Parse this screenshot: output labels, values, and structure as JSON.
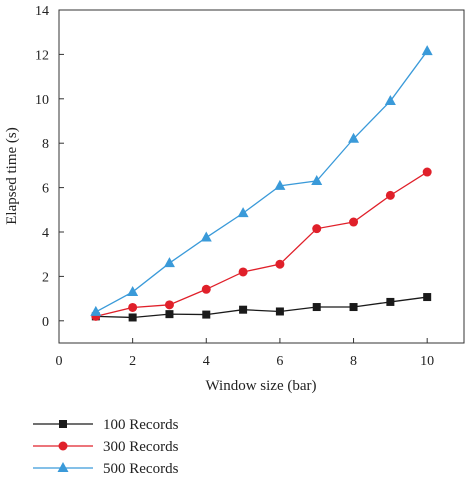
{
  "chart_data": {
    "type": "line",
    "title": "",
    "xlabel": "Window size (bar)",
    "ylabel": "Elapsed time (s)",
    "xlim": [
      0,
      11
    ],
    "ylim": [
      -1,
      14
    ],
    "x_ticks": [
      0,
      2,
      4,
      6,
      8,
      10
    ],
    "y_ticks": [
      0,
      2,
      4,
      6,
      8,
      10,
      12,
      14
    ],
    "grid": false,
    "legend_placement": "bottom-left, below plot",
    "x": [
      1,
      2,
      3,
      4,
      5,
      6,
      7,
      8,
      9,
      10
    ],
    "series": [
      {
        "name": "100 Records",
        "color": "#1a1a1a",
        "marker": "square",
        "values": [
          0.2,
          0.15,
          0.3,
          0.28,
          0.5,
          0.42,
          0.62,
          0.62,
          0.85,
          1.07
        ]
      },
      {
        "name": "300 Records",
        "color": "#e0202a",
        "marker": "circle",
        "values": [
          0.2,
          0.6,
          0.72,
          1.42,
          2.2,
          2.55,
          4.15,
          4.45,
          5.65,
          6.7
        ]
      },
      {
        "name": "500 Records",
        "color": "#3a9ad9",
        "marker": "triangle",
        "values": [
          0.4,
          1.3,
          2.6,
          3.75,
          4.85,
          6.08,
          6.3,
          8.2,
          9.9,
          12.15
        ]
      }
    ]
  }
}
